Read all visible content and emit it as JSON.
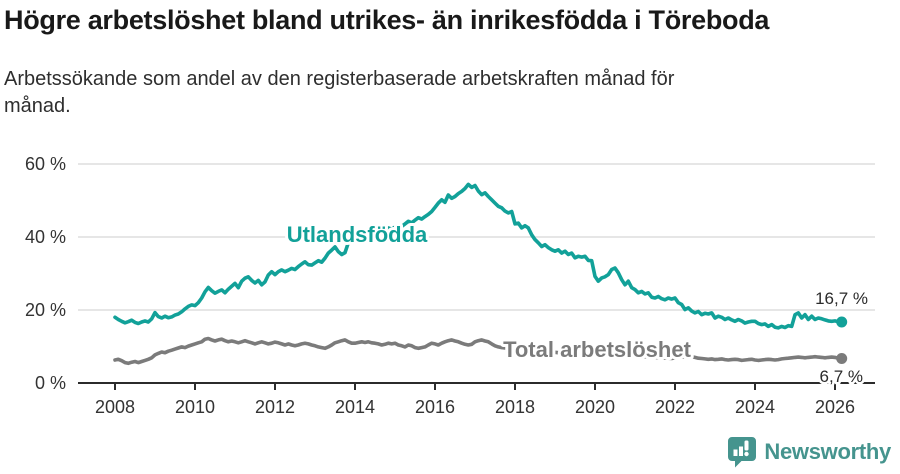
{
  "header": {
    "title": "Högre arbetslöshet bland utrikes- än inrikesfödda i Töreboda",
    "subtitle_line1": "Arbetssökande som andel av den registerbaserade arbetskraften månad för",
    "subtitle_line2": "månad."
  },
  "footer": {
    "brand": "Newsworthy",
    "brand_color": "#45948E",
    "logo_icon": "newsworthy-speech-bubble-bar-chart-icon"
  },
  "chart_data": {
    "type": "line",
    "title": "Högre arbetslöshet bland utrikes- än inrikesfödda i Töreboda",
    "subtitle": "Arbetssökande som andel av den registerbaserade arbetskraften månad för månad.",
    "unit": "%",
    "x_interval": "monthly",
    "x_start": "2008-01",
    "x_end": "2026-03",
    "x_tick_labels": [
      "2008",
      "2010",
      "2012",
      "2014",
      "2016",
      "2018",
      "2020",
      "2022",
      "2024",
      "2026"
    ],
    "y_tick_labels": [
      "0 %",
      "20 %",
      "40 %",
      "60 %"
    ],
    "ylim": [
      0,
      62
    ],
    "grid": "horizontal-only",
    "legend": "inline-labels-on-lines",
    "series": [
      {
        "name": "Utlandsfödda",
        "color": "#12A199",
        "end_value": 16.7,
        "end_label": "16,7 %",
        "values": [
          18.0,
          17.4,
          16.9,
          16.5,
          16.8,
          17.2,
          16.6,
          16.3,
          16.7,
          17.0,
          16.7,
          17.6,
          19.3,
          18.2,
          17.8,
          18.3,
          17.9,
          18.1,
          18.6,
          18.9,
          19.5,
          20.3,
          21.0,
          21.4,
          21.2,
          22.0,
          23.3,
          25.0,
          26.2,
          25.3,
          24.6,
          25.1,
          25.5,
          24.7,
          25.7,
          26.5,
          27.3,
          26.1,
          27.9,
          28.7,
          29.1,
          28.1,
          27.4,
          28.1,
          26.9,
          27.7,
          29.6,
          30.5,
          29.7,
          30.5,
          31.0,
          30.5,
          30.9,
          31.4,
          31.1,
          31.9,
          32.6,
          33.2,
          32.4,
          32.3,
          32.9,
          33.5,
          33.1,
          34.2,
          35.6,
          36.4,
          37.3,
          36.0,
          35.2,
          35.7,
          38.4,
          38.9,
          39.3,
          38.9,
          39.6,
          40.1,
          39.8,
          40.5,
          41.1,
          40.7,
          41.4,
          42.0,
          42.5,
          42.1,
          42.7,
          43.2,
          42.9,
          43.6,
          44.3,
          43.9,
          44.6,
          45.3,
          44.9,
          45.6,
          46.2,
          47.0,
          48.1,
          49.3,
          50.2,
          49.5,
          51.5,
          50.6,
          51.1,
          51.9,
          52.5,
          53.3,
          54.4,
          53.6,
          54.1,
          52.6,
          51.6,
          52.1,
          51.1,
          50.2,
          49.3,
          48.4,
          48.0,
          47.1,
          46.6,
          47.0,
          43.6,
          43.8,
          42.5,
          43.1,
          42.5,
          40.6,
          39.3,
          38.4,
          37.4,
          37.9,
          37.1,
          36.5,
          36.1,
          36.5,
          35.6,
          36.1,
          35.2,
          35.6,
          34.3,
          34.7,
          34.5,
          34.7,
          33.6,
          33.5,
          29.2,
          27.9,
          28.8,
          29.1,
          29.7,
          31.1,
          31.5,
          30.2,
          28.3,
          26.9,
          27.9,
          26.1,
          25.6,
          24.7,
          25.1,
          24.4,
          24.7,
          23.5,
          23.3,
          23.7,
          23.1,
          22.8,
          23.3,
          23.0,
          23.3,
          22.0,
          21.5,
          20.1,
          20.6,
          19.7,
          19.2,
          19.6,
          18.7,
          19.1,
          18.9,
          19.2,
          17.8,
          18.3,
          18.0,
          17.4,
          17.8,
          17.3,
          16.9,
          17.4,
          17.0,
          16.4,
          16.7,
          16.9,
          16.9,
          16.3,
          16.0,
          16.2,
          15.5,
          16.0,
          15.3,
          15.1,
          15.5,
          15.2,
          15.7,
          15.5,
          18.7,
          19.2,
          17.8,
          18.7,
          17.4,
          18.3,
          17.4,
          17.8,
          17.6,
          17.3,
          17.0,
          16.9,
          17.0,
          16.8,
          16.7
        ]
      },
      {
        "name": "Total arbetslöshet",
        "color": "#7b7b7b",
        "end_value": 6.7,
        "end_label": "6,7 %",
        "values": [
          6.3,
          6.5,
          6.1,
          5.6,
          5.4,
          5.7,
          5.9,
          5.6,
          5.9,
          6.2,
          6.5,
          6.9,
          7.7,
          8.1,
          8.5,
          8.3,
          8.7,
          9.0,
          9.3,
          9.6,
          9.9,
          9.7,
          10.1,
          10.4,
          10.7,
          11.0,
          11.3,
          12.0,
          12.2,
          11.8,
          11.5,
          11.8,
          12.0,
          11.6,
          11.3,
          11.5,
          11.3,
          11.0,
          11.3,
          11.6,
          11.3,
          11.0,
          10.7,
          11.0,
          11.3,
          11.0,
          10.7,
          10.9,
          11.2,
          11.0,
          10.7,
          10.4,
          10.7,
          10.4,
          10.2,
          10.4,
          10.7,
          10.9,
          10.7,
          10.4,
          10.2,
          9.9,
          9.7,
          9.5,
          9.9,
          10.4,
          11.0,
          11.3,
          11.6,
          11.8,
          11.3,
          10.9,
          10.9,
          11.1,
          11.3,
          11.1,
          11.3,
          11.0,
          10.9,
          10.7,
          10.4,
          10.6,
          10.9,
          10.7,
          10.9,
          10.4,
          10.2,
          9.9,
          10.4,
          10.2,
          9.7,
          9.5,
          9.7,
          9.9,
          10.4,
          10.9,
          10.7,
          10.4,
          10.9,
          11.3,
          11.6,
          11.8,
          11.5,
          11.3,
          10.9,
          10.6,
          10.4,
          10.6,
          11.3,
          11.6,
          11.8,
          11.5,
          11.3,
          10.7,
          10.2,
          9.9,
          9.7,
          9.6,
          9.5,
          9.4,
          9.4,
          9.3,
          9.2,
          9.1,
          9.0,
          8.9,
          8.8,
          8.8,
          8.7,
          8.6,
          8.5,
          8.5,
          8.4,
          8.3,
          8.3,
          8.2,
          8.1,
          8.1,
          8.0,
          7.9,
          7.9,
          7.8,
          7.8,
          7.7,
          7.9,
          8.1,
          8.3,
          8.4,
          8.3,
          8.2,
          8.1,
          8.0,
          7.9,
          7.8,
          7.7,
          7.6,
          7.5,
          7.4,
          7.3,
          7.2,
          7.1,
          7.0,
          7.0,
          6.9,
          6.9,
          6.8,
          6.8,
          6.7,
          6.9,
          7.0,
          7.1,
          7.2,
          7.3,
          7.2,
          7.0,
          6.8,
          6.7,
          6.6,
          6.5,
          6.6,
          6.4,
          6.5,
          6.6,
          6.4,
          6.3,
          6.4,
          6.5,
          6.4,
          6.2,
          6.3,
          6.4,
          6.5,
          6.3,
          6.2,
          6.3,
          6.4,
          6.5,
          6.4,
          6.3,
          6.4,
          6.6,
          6.7,
          6.8,
          6.9,
          7.0,
          7.1,
          7.0,
          6.9,
          7.0,
          7.1,
          7.2,
          7.1,
          7.0,
          6.9,
          7.0,
          7.1,
          7.0,
          6.8,
          6.7
        ]
      }
    ]
  }
}
